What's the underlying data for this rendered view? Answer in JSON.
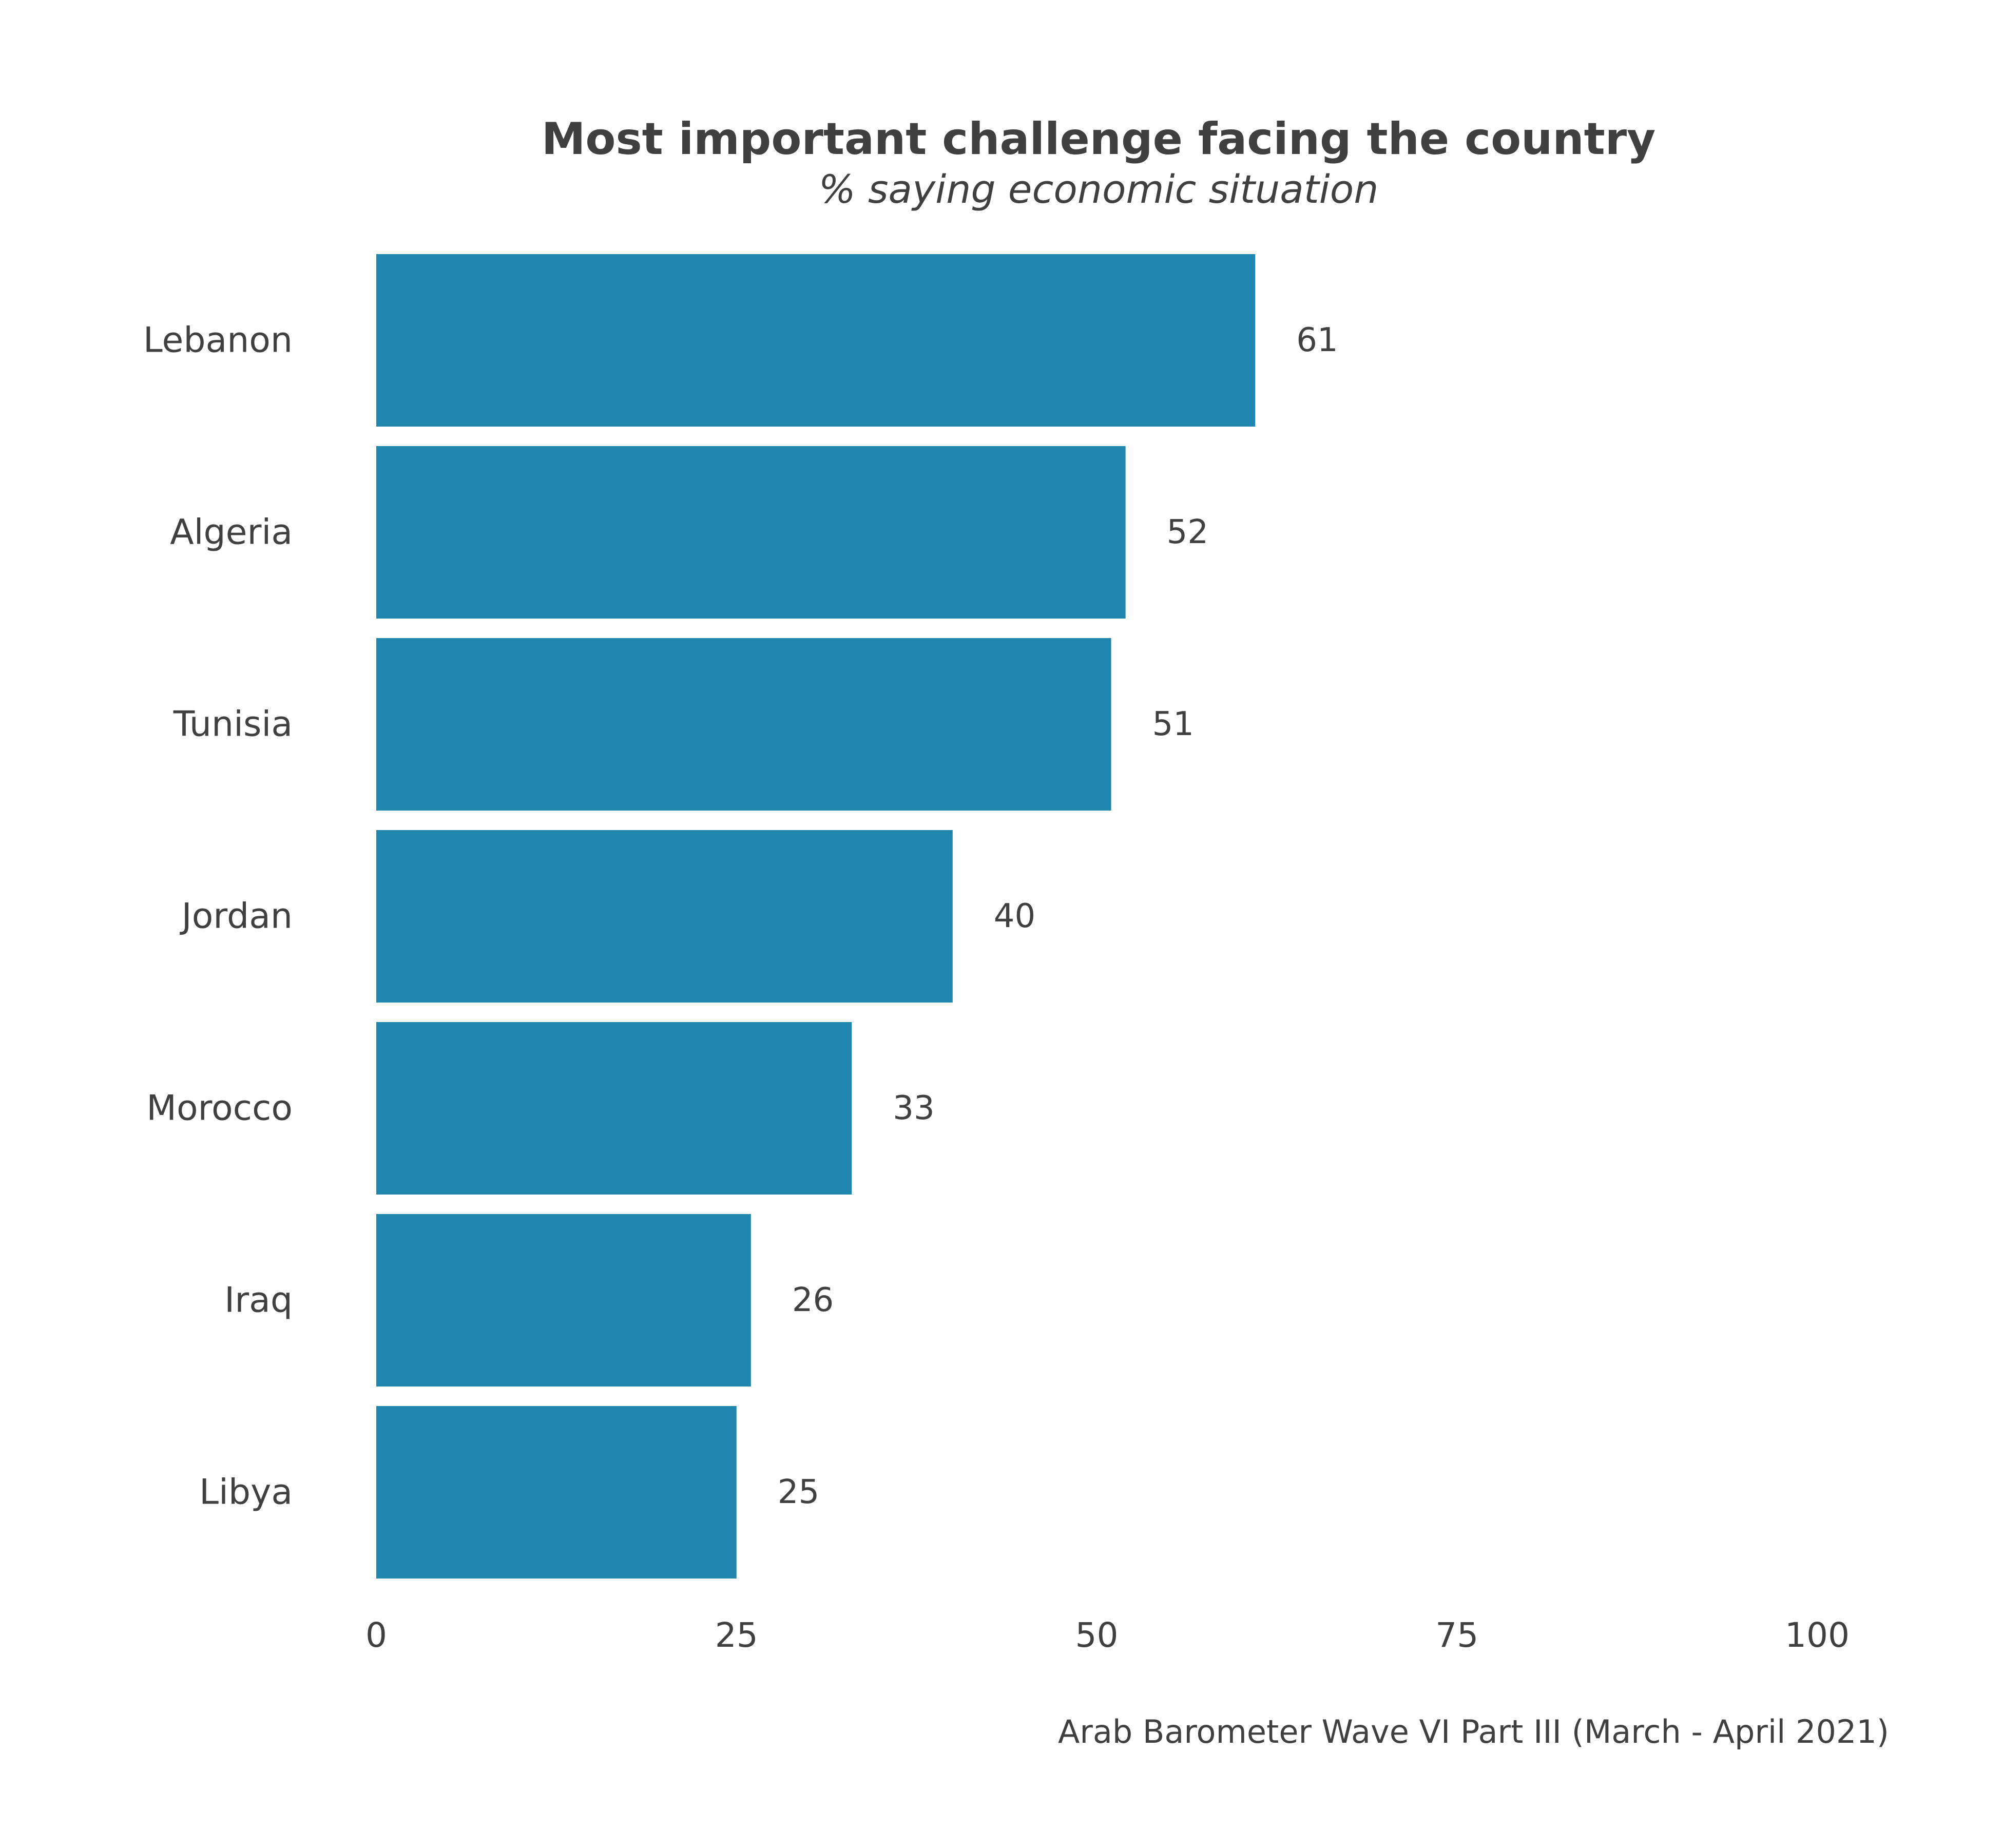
{
  "chart_data": {
    "type": "bar",
    "orientation": "horizontal",
    "title": "Most important challenge facing the country",
    "subtitle": "% saying economic situation",
    "caption": "Arab Barometer Wave VI Part III (March - April 2021)",
    "categories": [
      "Lebanon",
      "Algeria",
      "Tunisia",
      "Jordan",
      "Morocco",
      "Iraq",
      "Libya"
    ],
    "values": [
      61,
      52,
      51,
      40,
      33,
      26,
      25
    ],
    "value_labels": [
      "61",
      "52",
      "51",
      "40",
      "33",
      "26",
      "25"
    ],
    "xlim": [
      0,
      100
    ],
    "xticks": [
      0,
      25,
      50,
      75,
      100
    ],
    "xtick_labels": [
      "0",
      "25",
      "50",
      "75",
      "100"
    ],
    "xlabel": "",
    "ylabel": "",
    "grid": false,
    "legend": "none",
    "bar_color": "#2086ad"
  }
}
